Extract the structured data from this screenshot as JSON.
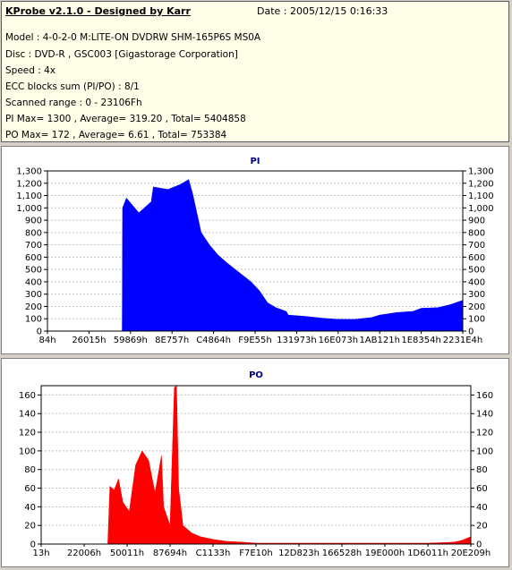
{
  "info": {
    "title": "KProbe v2.1.0 - Designed by Karr",
    "date": "Date : 2005/12/15 0:16:33",
    "lines": [
      "Model : 4-0-2-0 M:LITE-ON DVDRW SHM-165P6S MS0A",
      "Disc : DVD-R , GSC003 [Gigastorage Corporation]",
      "Speed : 4x",
      "ECC blocks sum (PI/PO) : 8/1",
      "Scanned range : 0 - 23106Fh",
      "PI Max= 1300 , Average= 319.20 , Total= 5404858",
      "PO Max= 172 , Average= 6.61 , Total= 753384"
    ]
  },
  "colors": {
    "pi": "#0000ff",
    "po": "#ff0000",
    "grid": "#c0c0c0"
  },
  "chart_data": [
    {
      "type": "area",
      "title": "PI",
      "ylim": [
        0,
        1300
      ],
      "yticks": [
        0,
        100,
        200,
        300,
        400,
        500,
        600,
        700,
        800,
        900,
        1000,
        1100,
        1200,
        1300
      ],
      "ytick_labels": [
        "0",
        "100",
        "200",
        "300",
        "400",
        "500",
        "600",
        "700",
        "800",
        "900",
        "1,000",
        "1,100",
        "1,200",
        "1,300"
      ],
      "xtick_labels": [
        "84h",
        "26015h",
        "59869h",
        "8E757h",
        "C4864h",
        "F9E55h",
        "131973h",
        "16E073h",
        "1AB121h",
        "1E8354h",
        "2231E4h"
      ],
      "grid": true,
      "x": [
        0.0,
        0.18,
        0.181,
        0.19,
        0.22,
        0.25,
        0.255,
        0.29,
        0.32,
        0.34,
        0.35,
        0.37,
        0.39,
        0.41,
        0.43,
        0.46,
        0.49,
        0.51,
        0.53,
        0.55,
        0.575,
        0.58,
        0.62,
        0.66,
        0.7,
        0.74,
        0.78,
        0.8,
        0.84,
        0.88,
        0.9,
        0.94,
        0.97,
        1.0
      ],
      "values": [
        0,
        0,
        1000,
        1080,
        960,
        1050,
        1170,
        1150,
        1190,
        1230,
        1110,
        800,
        700,
        620,
        560,
        480,
        400,
        330,
        230,
        190,
        160,
        130,
        120,
        105,
        95,
        95,
        110,
        130,
        150,
        160,
        185,
        190,
        215,
        250
      ]
    },
    {
      "type": "area",
      "title": "PO",
      "ylim": [
        0,
        170
      ],
      "yticks": [
        0,
        20,
        40,
        60,
        80,
        100,
        120,
        140,
        160
      ],
      "ytick_labels": [
        "0",
        "20",
        "40",
        "60",
        "80",
        "100",
        "120",
        "140",
        "160"
      ],
      "xtick_labels": [
        "13h",
        "22006h",
        "50011h",
        "87694h",
        "C1133h",
        "F7E10h",
        "12D823h",
        "166528h",
        "19E000h",
        "1D6011h",
        "20E209h"
      ],
      "grid": true,
      "x": [
        0.0,
        0.155,
        0.16,
        0.17,
        0.18,
        0.19,
        0.205,
        0.22,
        0.235,
        0.25,
        0.265,
        0.28,
        0.285,
        0.3,
        0.31,
        0.315,
        0.32,
        0.33,
        0.35,
        0.37,
        0.4,
        0.43,
        0.47,
        0.5,
        0.6,
        0.7,
        0.8,
        0.9,
        0.96,
        0.98,
        1.0
      ],
      "values": [
        0,
        0,
        62,
        58,
        70,
        45,
        35,
        85,
        100,
        90,
        55,
        95,
        40,
        20,
        168,
        172,
        60,
        20,
        12,
        8,
        5,
        3,
        2,
        1,
        1,
        1,
        1,
        1,
        2,
        4,
        8
      ]
    }
  ]
}
